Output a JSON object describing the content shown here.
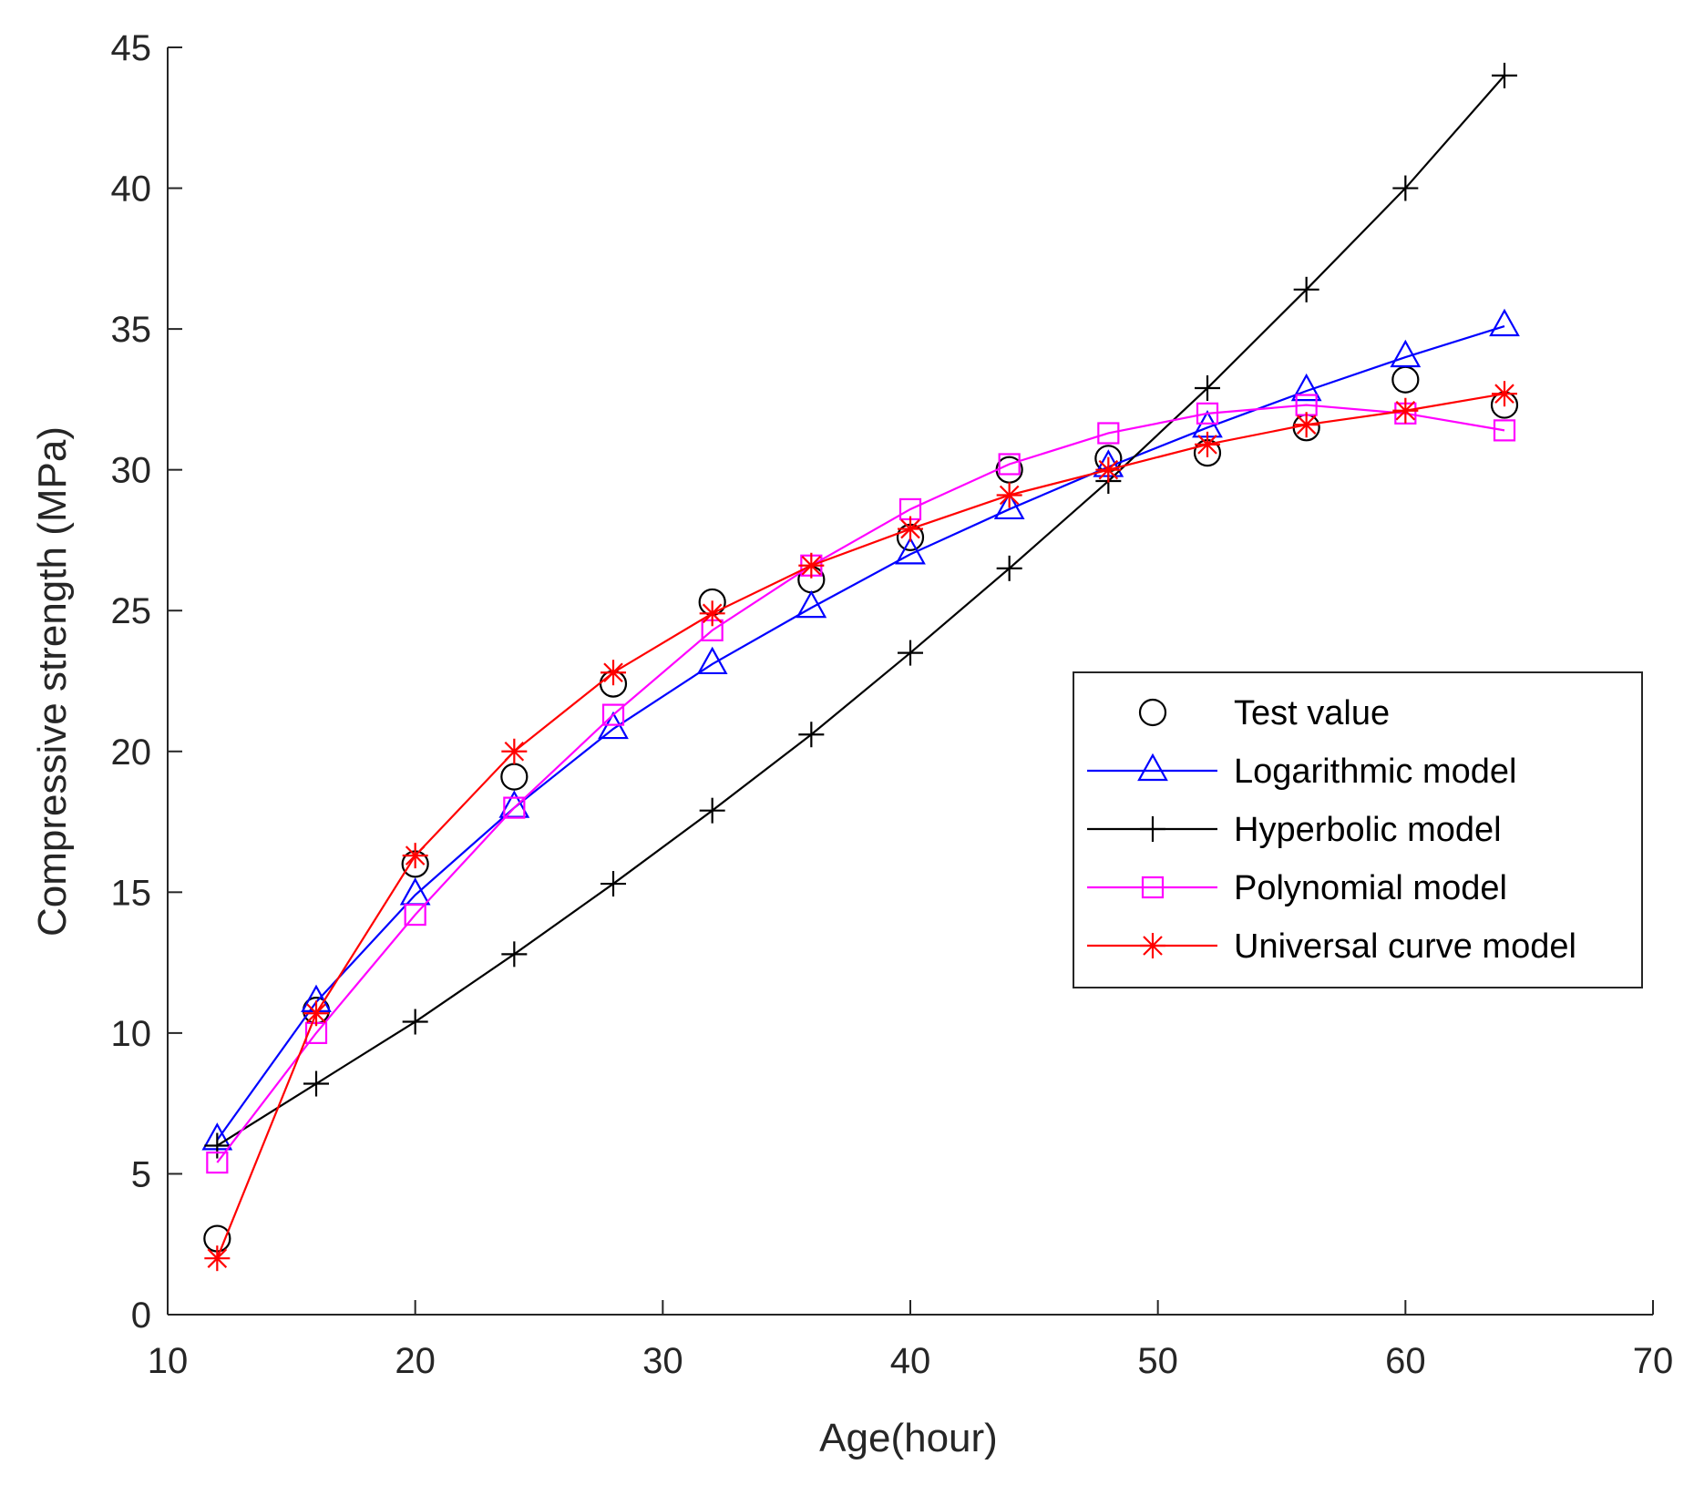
{
  "chart_data": {
    "type": "line",
    "title": "",
    "xlabel": "Age(hour)",
    "ylabel": "Compressive strength (MPa)",
    "xlim": [
      10,
      70
    ],
    "ylim": [
      0,
      45
    ],
    "xticks": [
      10,
      20,
      30,
      40,
      50,
      60,
      70
    ],
    "yticks": [
      0,
      5,
      10,
      15,
      20,
      25,
      30,
      35,
      40,
      45
    ],
    "grid": false,
    "legend_position": "right",
    "x": [
      12,
      16,
      20,
      24,
      28,
      32,
      36,
      40,
      44,
      48,
      52,
      56,
      60,
      64
    ],
    "series": [
      {
        "name": "Test value",
        "marker": "circle",
        "line": false,
        "color": "#000000",
        "values": [
          2.7,
          10.8,
          16.0,
          19.1,
          22.4,
          25.3,
          26.1,
          27.6,
          30.0,
          30.4,
          30.6,
          31.5,
          33.2,
          32.3
        ]
      },
      {
        "name": "Logarithmic model",
        "marker": "triangle",
        "line": true,
        "color": "#0000ff",
        "values": [
          6.2,
          11.1,
          14.9,
          18.0,
          20.8,
          23.1,
          25.1,
          27.0,
          28.6,
          30.1,
          31.5,
          32.8,
          34.0,
          35.1
        ]
      },
      {
        "name": "Hyperbolic model",
        "marker": "plus",
        "line": true,
        "color": "#000000",
        "values": [
          6.0,
          8.2,
          10.4,
          12.8,
          15.3,
          17.9,
          20.6,
          23.5,
          26.5,
          29.6,
          32.9,
          36.4,
          40.0,
          44.0
        ]
      },
      {
        "name": "Polynomial model",
        "marker": "square",
        "line": true,
        "color": "#ff00ff",
        "values": [
          5.4,
          10.0,
          14.2,
          18.0,
          21.3,
          24.3,
          26.6,
          28.6,
          30.2,
          31.3,
          32.0,
          32.3,
          32.0,
          31.4
        ]
      },
      {
        "name": "Universal curve model",
        "marker": "asterisk",
        "line": true,
        "color": "#ff0000",
        "values": [
          2.0,
          10.7,
          16.3,
          20.0,
          22.8,
          24.9,
          26.6,
          27.9,
          29.1,
          30.0,
          30.9,
          31.6,
          32.1,
          32.7
        ]
      }
    ]
  }
}
